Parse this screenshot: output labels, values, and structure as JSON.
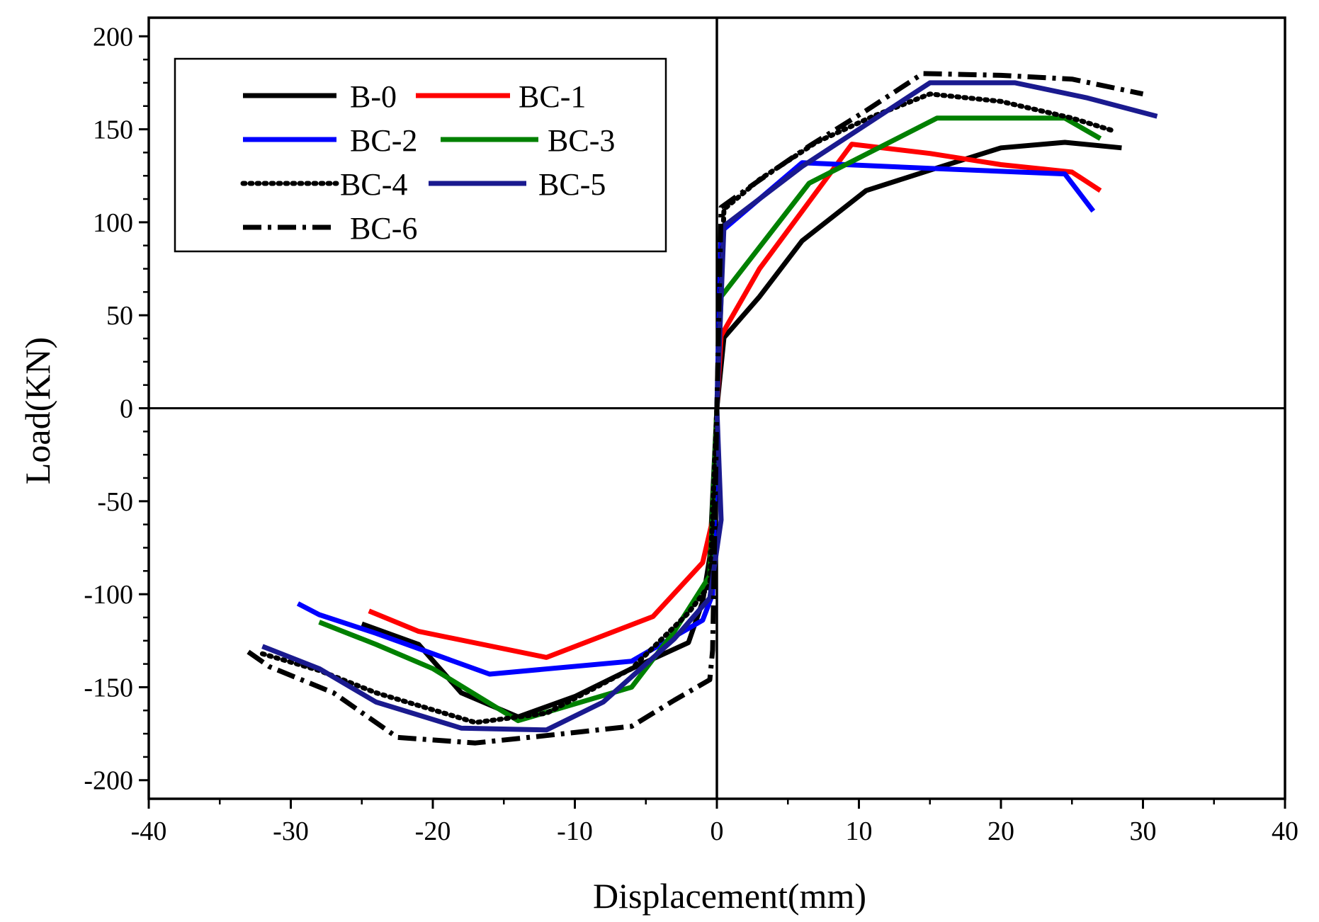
{
  "chart_data": {
    "type": "line",
    "title": "",
    "xlabel": "Displacement(mm)",
    "ylabel": "Load(KN)",
    "xlim": [
      -40,
      40
    ],
    "ylim": [
      -210,
      210
    ],
    "xticks": [
      -40,
      -30,
      -20,
      -10,
      0,
      10,
      20,
      30,
      40
    ],
    "yticks": [
      -200,
      -150,
      -100,
      -50,
      0,
      50,
      100,
      150,
      200
    ],
    "xtick_labels": [
      "-40",
      "-30",
      "-20",
      "-10",
      "0",
      "10",
      "20",
      "30",
      "40"
    ],
    "ytick_labels": [
      "-200",
      "-150",
      "-100",
      "-50",
      "0",
      "50",
      "100",
      "150",
      "200"
    ],
    "grid": false,
    "legend_position": "top-left",
    "series": [
      {
        "name": "B-0",
        "color": "#000000",
        "dash": "solid",
        "x": [
          -25,
          -21,
          -18,
          -14,
          -10,
          -6,
          -2,
          -1,
          -0.5,
          0,
          0.5,
          3,
          6,
          10.5,
          15,
          20,
          24.5,
          28.5
        ],
        "y": [
          -116,
          -127,
          -153,
          -166,
          -155,
          -140,
          -126,
          -104,
          -80,
          0,
          38,
          60,
          90,
          117,
          128,
          140,
          143,
          140
        ]
      },
      {
        "name": "BC-1",
        "color": "#ff0000",
        "dash": "solid",
        "x": [
          -24.5,
          -21,
          -12,
          -4.5,
          -1,
          -0.3,
          0,
          0.3,
          3,
          9.5,
          15,
          20,
          25,
          27
        ],
        "y": [
          -109,
          -120,
          -134,
          -112,
          -83,
          -60,
          0,
          39,
          75,
          142,
          137,
          131,
          127,
          117
        ]
      },
      {
        "name": "BC-2",
        "color": "#0000ff",
        "dash": "solid",
        "x": [
          -29.5,
          -28,
          -24,
          -16,
          -6,
          -1,
          -0.3,
          0,
          0.3,
          6,
          15,
          24.5,
          26.5
        ],
        "y": [
          -105,
          -111,
          -121,
          -143,
          -136,
          -114,
          -100,
          0,
          95,
          132,
          129,
          126,
          106
        ]
      },
      {
        "name": "BC-3",
        "color": "#008000",
        "dash": "solid",
        "x": [
          -28,
          -24,
          -20,
          -14,
          -6,
          -3,
          -0.5,
          0,
          0.3,
          6.5,
          15.5,
          21,
          24.5,
          27
        ],
        "y": [
          -115,
          -127,
          -140,
          -168,
          -150,
          -120,
          -90,
          0,
          60,
          121,
          156,
          156,
          156,
          145
        ]
      },
      {
        "name": "BC-4",
        "color": "#000000",
        "dash": "dotted",
        "x": [
          -32,
          -28,
          -24,
          -17,
          -12,
          -6,
          -2,
          -0.5,
          0,
          0.5,
          3,
          7,
          11,
          15,
          20,
          25,
          28
        ],
        "y": [
          -132,
          -141,
          -153,
          -169,
          -164,
          -140,
          -110,
          -95,
          0,
          107,
          123,
          143,
          157,
          169,
          165,
          156,
          149
        ]
      },
      {
        "name": "BC-5",
        "color": "#1a1a8f",
        "dash": "solid",
        "x": [
          -32,
          -28,
          -24,
          -18,
          -12,
          -8,
          -3,
          -0.5,
          0.3,
          0,
          0.5,
          6,
          15,
          21,
          26,
          31
        ],
        "y": [
          -128,
          -140,
          -158,
          -172,
          -173,
          -158,
          -124,
          -102,
          -60,
          0,
          98,
          130,
          175,
          175,
          167,
          157
        ]
      },
      {
        "name": "BC-6",
        "color": "#000000",
        "dash": "dashdot",
        "x": [
          -33,
          -31.5,
          -27,
          -22.5,
          -17,
          -12,
          -6,
          -3,
          -0.5,
          -0.3,
          0,
          0.3,
          2.5,
          6.5,
          10.5,
          14.5,
          20,
          25,
          30
        ],
        "y": [
          -131,
          -139,
          -153,
          -177,
          -180,
          -176,
          -171,
          -157,
          -146,
          -130,
          0,
          108,
          120,
          141,
          160,
          180,
          179,
          177,
          169
        ]
      }
    ]
  }
}
